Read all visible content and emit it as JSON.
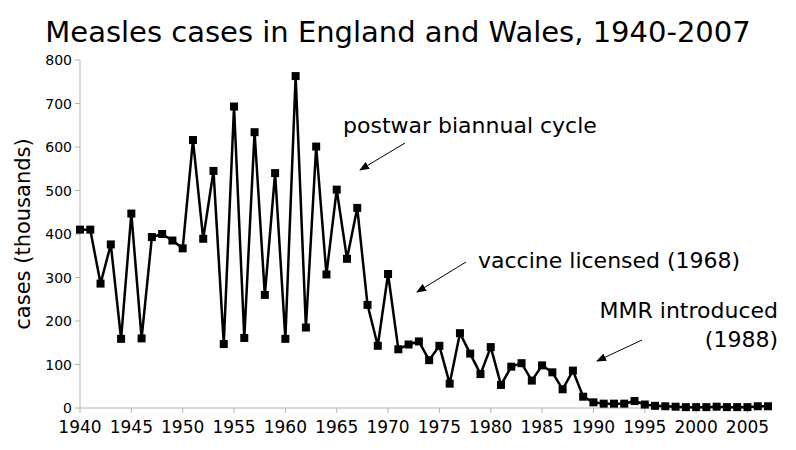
{
  "chart_data": {
    "type": "line",
    "title": "Measles cases in England and Wales, 1940-2007",
    "y_label": "cases (thousands)",
    "x": [
      1940,
      1941,
      1942,
      1943,
      1944,
      1945,
      1946,
      1947,
      1948,
      1949,
      1950,
      1951,
      1952,
      1953,
      1954,
      1955,
      1956,
      1957,
      1958,
      1959,
      1960,
      1961,
      1962,
      1963,
      1964,
      1965,
      1966,
      1967,
      1968,
      1969,
      1970,
      1971,
      1972,
      1973,
      1974,
      1975,
      1976,
      1977,
      1978,
      1979,
      1980,
      1981,
      1982,
      1983,
      1984,
      1985,
      1986,
      1987,
      1988,
      1989,
      1990,
      1991,
      1992,
      1993,
      1994,
      1995,
      1996,
      1997,
      1998,
      1999,
      2000,
      2001,
      2002,
      2003,
      2004,
      2005,
      2006,
      2007
    ],
    "values": [
      410,
      410,
      286,
      376,
      159,
      447,
      160,
      393,
      400,
      385,
      367,
      616,
      389,
      545,
      147,
      693,
      161,
      634,
      260,
      540,
      159,
      763,
      185,
      601,
      307,
      502,
      343,
      460,
      237,
      143,
      308,
      135,
      146,
      153,
      110,
      143,
      56,
      172,
      125,
      78,
      140,
      53,
      95,
      103,
      63,
      98,
      82,
      43,
      86,
      26,
      13,
      10,
      10,
      10,
      16,
      8,
      5,
      4,
      3,
      2,
      2,
      2,
      3,
      2,
      2,
      2,
      4,
      4
    ],
    "color": "#000000",
    "marker": "square",
    "grid": false,
    "xlim": [
      1940,
      2007
    ],
    "xticks": [
      1940,
      1945,
      1950,
      1955,
      1960,
      1965,
      1970,
      1975,
      1980,
      1985,
      1990,
      1995,
      2000,
      2005
    ],
    "ylim": [
      0,
      800
    ],
    "yticks": [
      0,
      100,
      200,
      300,
      400,
      500,
      600,
      700,
      800
    ],
    "annotations": [
      {
        "lines": [
          "postwar biannual cycle"
        ]
      },
      {
        "lines": [
          "vaccine licensed (1968)"
        ]
      },
      {
        "lines": [
          "MMR introduced",
          "(1988)"
        ]
      }
    ]
  }
}
